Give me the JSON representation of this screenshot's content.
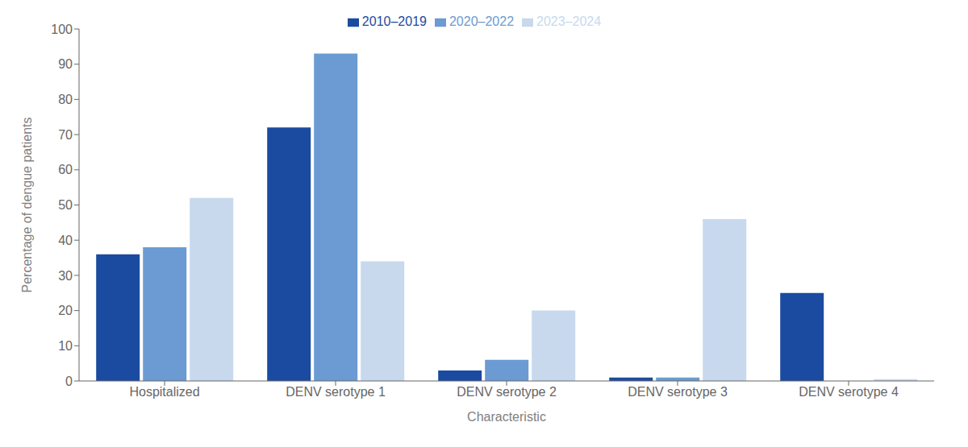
{
  "chart_data": {
    "type": "bar",
    "categories": [
      "Hospitalized",
      "DENV serotype 1",
      "DENV serotype 2",
      "DENV serotype 3",
      "DENV serotype 4"
    ],
    "series": [
      {
        "name": "2010–2019",
        "color": "#1B4BA0",
        "values": [
          36,
          72,
          3,
          1,
          25
        ]
      },
      {
        "name": "2020–2022",
        "color": "#6B9BD2",
        "values": [
          38,
          93,
          6,
          1,
          0
        ]
      },
      {
        "name": "2023–2024",
        "color": "#C8D9EE",
        "values": [
          52,
          34,
          20,
          46,
          0.5
        ]
      }
    ],
    "xlabel": "Characteristic",
    "ylabel": "Percentage of dengue patients",
    "ylim": [
      0,
      100
    ],
    "yticks": [
      0,
      10,
      20,
      30,
      40,
      50,
      60,
      70,
      80,
      90,
      100
    ],
    "grid": false,
    "legend": "top"
  }
}
